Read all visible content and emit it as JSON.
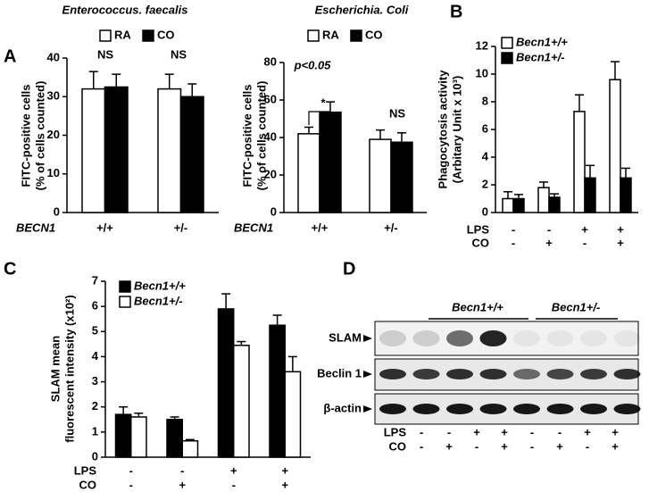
{
  "panel_labels": [
    "A",
    "B",
    "C",
    "D"
  ],
  "chart_data": [
    {
      "type": "bar",
      "title": "Enterococcus. faecalis",
      "ylabel": [
        "FITC-positive cells",
        "(% of cells counted)"
      ],
      "xlabel": "BECN1",
      "categories": [
        "+/+",
        "+/-"
      ],
      "ylim": [
        0,
        40
      ],
      "yticks": [
        0,
        10,
        20,
        30,
        40
      ],
      "series": [
        {
          "name": "RA",
          "color": "#ffffff",
          "values": [
            32,
            32
          ],
          "errors": [
            4.5,
            3.8
          ]
        },
        {
          "name": "CO",
          "color": "#000000",
          "values": [
            32.5,
            30
          ],
          "errors": [
            3.3,
            3.3
          ]
        }
      ],
      "annotations": [
        "NS",
        "NS"
      ]
    },
    {
      "type": "bar",
      "title": "Escherichia. Coli",
      "ylabel": [
        "FITC-positive cells",
        "(% of cells counted)"
      ],
      "xlabel": "BECN1",
      "categories": [
        "+/+",
        "+/-"
      ],
      "ylim": [
        0,
        80
      ],
      "yticks": [
        0,
        20,
        40,
        60,
        80
      ],
      "series": [
        {
          "name": "RA",
          "color": "#ffffff",
          "values": [
            42,
            39
          ],
          "errors": [
            3.5,
            5
          ]
        },
        {
          "name": "CO",
          "color": "#000000",
          "values": [
            53.5,
            37.5
          ],
          "errors": [
            5.5,
            5
          ]
        }
      ],
      "annotations": [
        "p<0.05",
        "*",
        "NS"
      ]
    },
    {
      "type": "bar",
      "ylabel": [
        "Phagocytosis activity",
        "(Arbitary Unit x 10³)"
      ],
      "ylim": [
        0,
        12
      ],
      "yticks": [
        0,
        2,
        4,
        6,
        8,
        10,
        12
      ],
      "condition_rows": [
        {
          "label": "LPS",
          "values": [
            "-",
            "-",
            "+",
            "+"
          ]
        },
        {
          "label": "CO",
          "values": [
            "-",
            "+",
            "-",
            "+"
          ]
        }
      ],
      "series": [
        {
          "name": "Becn1+/+",
          "color": "#ffffff",
          "values": [
            1.0,
            1.8,
            7.3,
            9.6
          ],
          "errors": [
            0.5,
            0.4,
            1.2,
            1.3
          ]
        },
        {
          "name": "Becn1+/-",
          "color": "#000000",
          "values": [
            1.0,
            1.1,
            2.5,
            2.5
          ],
          "errors": [
            0.3,
            0.25,
            0.9,
            0.7
          ]
        }
      ]
    },
    {
      "type": "bar",
      "ylabel": [
        "SLAM mean",
        "fluorescent intensity (x10²)"
      ],
      "ylim": [
        0,
        7
      ],
      "yticks": [
        0,
        1,
        2,
        3,
        4,
        5,
        6,
        7
      ],
      "condition_rows": [
        {
          "label": "LPS",
          "values": [
            "-",
            "-",
            "+",
            "+"
          ]
        },
        {
          "label": "CO",
          "values": [
            "-",
            "+",
            "-",
            "+"
          ]
        }
      ],
      "series": [
        {
          "name": "Becn1+/+",
          "color": "#000000",
          "values": [
            1.7,
            1.5,
            5.9,
            5.25
          ],
          "errors": [
            0.3,
            0.1,
            0.6,
            0.4
          ]
        },
        {
          "name": "Becn1+/-",
          "color": "#ffffff",
          "values": [
            1.6,
            0.65,
            4.45,
            3.4
          ],
          "errors": [
            0.15,
            0.05,
            0.15,
            0.6
          ]
        }
      ]
    }
  ],
  "blot": {
    "groups": [
      "Becn1+/+",
      "Becn1+/-"
    ],
    "rows": [
      "SLAM",
      "Beclin 1",
      "β-actin"
    ],
    "conditions": [
      {
        "label": "LPS",
        "values": [
          "-",
          "-",
          "+",
          "+",
          "-",
          "-",
          "+",
          "+"
        ]
      },
      {
        "label": "CO",
        "values": [
          "-",
          "+",
          "-",
          "+",
          "-",
          "+",
          "-",
          "+"
        ]
      }
    ]
  }
}
